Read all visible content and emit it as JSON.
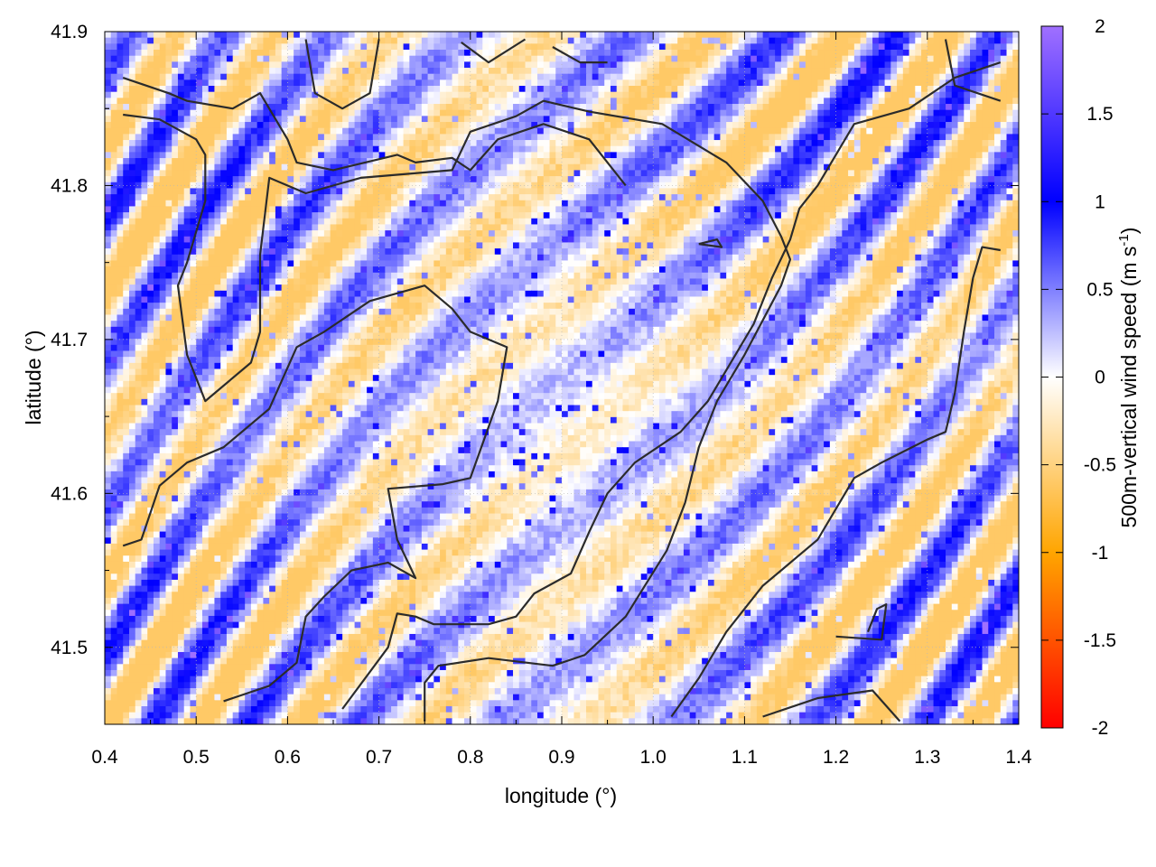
{
  "chart_data": {
    "type": "heatmap",
    "title": "",
    "xlabel": "longitude (°)",
    "ylabel": "latitude (°)",
    "xlim": [
      0.4,
      1.4
    ],
    "ylim": [
      41.45,
      41.9
    ],
    "x_ticks": [
      "0.4",
      "0.5",
      "0.6",
      "0.7",
      "0.8",
      "0.9",
      "1.0",
      "1.1",
      "1.2",
      "1.3",
      "1.4"
    ],
    "y_ticks": [
      "41.5",
      "41.6",
      "41.7",
      "41.8",
      "41.9"
    ],
    "grid": true,
    "colorbar": {
      "label_main": "500m-vertical wind speed (m s",
      "label_sup": "-1",
      "label_close": ")",
      "range": [
        -2,
        2
      ],
      "ticks": [
        "2",
        "1.5",
        "1",
        "0.5",
        "0",
        "-0.5",
        "-1",
        "-1.5",
        "-2"
      ],
      "colors": [
        "#ff0000",
        "#ffa500",
        "#ffffff",
        "#0000ff",
        "#a070ff"
      ],
      "position": "right"
    },
    "field_description": "500 m vertical wind speed, mostly between -0.5 and +1 m/s, with wave-like banded patterns and strong updrafts in NW and SE corners",
    "contours": [
      [
        [
          0.42,
          41.87
        ],
        [
          0.47,
          41.86
        ],
        [
          0.49,
          41.855
        ],
        [
          0.54,
          41.85
        ],
        [
          0.57,
          41.86
        ],
        [
          0.6,
          41.83
        ],
        [
          0.61,
          41.815
        ],
        [
          0.65,
          41.81
        ],
        [
          0.72,
          41.82
        ],
        [
          0.74,
          41.815
        ],
        [
          0.78,
          41.818
        ],
        [
          0.8,
          41.81
        ],
        [
          0.83,
          41.83
        ],
        [
          0.88,
          41.84
        ],
        [
          0.93,
          41.83
        ],
        [
          0.97,
          41.8
        ]
      ],
      [
        [
          0.42,
          41.846
        ],
        [
          0.46,
          41.843
        ],
        [
          0.5,
          41.83
        ],
        [
          0.51,
          41.82
        ],
        [
          0.51,
          41.79
        ],
        [
          0.49,
          41.75
        ],
        [
          0.48,
          41.735
        ],
        [
          0.49,
          41.69
        ],
        [
          0.51,
          41.66
        ],
        [
          0.53,
          41.67
        ],
        [
          0.56,
          41.685
        ],
        [
          0.57,
          41.705
        ],
        [
          0.57,
          41.755
        ],
        [
          0.58,
          41.805
        ],
        [
          0.62,
          41.795
        ],
        [
          0.68,
          41.805
        ],
        [
          0.78,
          41.81
        ],
        [
          0.8,
          41.835
        ],
        [
          0.85,
          41.845
        ],
        [
          0.88,
          41.855
        ],
        [
          0.93,
          41.848
        ],
        [
          1.01,
          41.84
        ],
        [
          1.08,
          41.815
        ],
        [
          1.12,
          41.79
        ],
        [
          1.14,
          41.767
        ],
        [
          1.15,
          41.752
        ],
        [
          1.14,
          41.735
        ],
        [
          1.1,
          41.69
        ],
        [
          1.07,
          41.66
        ],
        [
          1.05,
          41.63
        ],
        [
          1.035,
          41.594
        ],
        [
          1.015,
          41.563
        ],
        [
          0.97,
          41.52
        ],
        [
          0.925,
          41.495
        ],
        [
          0.89,
          41.488
        ],
        [
          0.82,
          41.493
        ],
        [
          0.765,
          41.488
        ],
        [
          0.75,
          41.477
        ],
        [
          0.75,
          41.452
        ]
      ],
      [
        [
          0.42,
          41.566
        ],
        [
          0.44,
          41.57
        ],
        [
          0.46,
          41.605
        ],
        [
          0.49,
          41.62
        ],
        [
          0.53,
          41.63
        ],
        [
          0.58,
          41.655
        ],
        [
          0.61,
          41.695
        ],
        [
          0.64,
          41.705
        ],
        [
          0.69,
          41.725
        ],
        [
          0.75,
          41.735
        ],
        [
          0.78,
          41.72
        ],
        [
          0.8,
          41.705
        ],
        [
          0.84,
          41.695
        ],
        [
          0.83,
          41.66
        ],
        [
          0.8,
          41.61
        ],
        [
          0.77,
          41.606
        ],
        [
          0.71,
          41.603
        ],
        [
          0.72,
          41.57
        ],
        [
          0.74,
          41.545
        ],
        [
          0.71,
          41.555
        ],
        [
          0.67,
          41.55
        ],
        [
          0.64,
          41.533
        ],
        [
          0.62,
          41.52
        ],
        [
          0.61,
          41.49
        ],
        [
          0.58,
          41.475
        ],
        [
          0.53,
          41.465
        ]
      ],
      [
        [
          0.66,
          41.46
        ],
        [
          0.71,
          41.5
        ],
        [
          0.72,
          41.522
        ],
        [
          0.74,
          41.52
        ],
        [
          0.76,
          41.515
        ],
        [
          0.79,
          41.515
        ],
        [
          0.82,
          41.515
        ],
        [
          0.85,
          41.52
        ],
        [
          0.87,
          41.535
        ],
        [
          0.91,
          41.548
        ],
        [
          0.93,
          41.575
        ],
        [
          0.95,
          41.6
        ],
        [
          0.98,
          41.62
        ],
        [
          1.03,
          41.64
        ],
        [
          1.06,
          41.66
        ],
        [
          1.09,
          41.69
        ],
        [
          1.11,
          41.71
        ],
        [
          1.13,
          41.74
        ],
        [
          1.15,
          41.765
        ],
        [
          1.16,
          41.785
        ],
        [
          1.18,
          41.8
        ],
        [
          1.22,
          41.84
        ],
        [
          1.28,
          41.85
        ],
        [
          1.33,
          41.87
        ],
        [
          1.38,
          41.88
        ]
      ],
      [
        [
          1.02,
          41.455
        ],
        [
          1.05,
          41.48
        ],
        [
          1.08,
          41.51
        ],
        [
          1.12,
          41.54
        ],
        [
          1.14,
          41.55
        ],
        [
          1.18,
          41.57
        ],
        [
          1.2,
          41.59
        ],
        [
          1.22,
          41.61
        ],
        [
          1.25,
          41.62
        ],
        [
          1.3,
          41.635
        ],
        [
          1.32,
          41.64
        ],
        [
          1.33,
          41.665
        ],
        [
          1.34,
          41.705
        ],
        [
          1.35,
          41.74
        ],
        [
          1.36,
          41.76
        ],
        [
          1.38,
          41.758
        ]
      ],
      [
        [
          1.12,
          41.455
        ],
        [
          1.18,
          41.467
        ],
        [
          1.24,
          41.472
        ],
        [
          1.27,
          41.452
        ]
      ],
      [
        [
          1.2,
          41.507
        ],
        [
          1.25,
          41.505
        ],
        [
          1.255,
          41.528
        ],
        [
          1.245,
          41.525
        ],
        [
          1.235,
          41.51
        ]
      ],
      [
        [
          1.05,
          41.762
        ],
        [
          1.075,
          41.76
        ],
        [
          1.07,
          41.765
        ],
        [
          1.05,
          41.762
        ]
      ],
      [
        [
          0.62,
          41.895
        ],
        [
          0.63,
          41.86
        ],
        [
          0.66,
          41.85
        ],
        [
          0.69,
          41.86
        ],
        [
          0.7,
          41.895
        ]
      ],
      [
        [
          0.79,
          41.893
        ],
        [
          0.82,
          41.88
        ],
        [
          0.86,
          41.895
        ]
      ],
      [
        [
          0.89,
          41.89
        ],
        [
          0.92,
          41.88
        ],
        [
          0.95,
          41.88
        ]
      ],
      [
        [
          1.32,
          41.895
        ],
        [
          1.33,
          41.865
        ],
        [
          1.38,
          41.855
        ]
      ]
    ]
  }
}
